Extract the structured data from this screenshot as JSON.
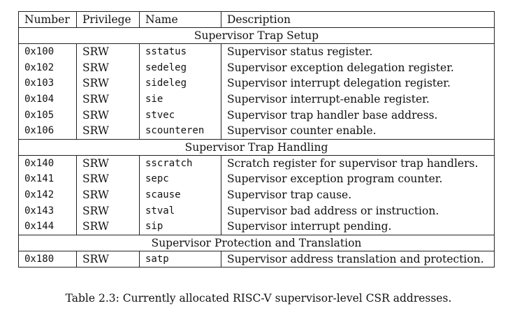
{
  "table": {
    "headers": [
      "Number",
      "Privilege",
      "Name",
      "Description"
    ],
    "sections": [
      {
        "title": "Supervisor Trap Setup",
        "rows": [
          {
            "number": "0x100",
            "privilege": "SRW",
            "name": "sstatus",
            "description": "Supervisor status register."
          },
          {
            "number": "0x102",
            "privilege": "SRW",
            "name": "sedeleg",
            "description": "Supervisor exception delegation register."
          },
          {
            "number": "0x103",
            "privilege": "SRW",
            "name": "sideleg",
            "description": "Supervisor interrupt delegation register."
          },
          {
            "number": "0x104",
            "privilege": "SRW",
            "name": "sie",
            "description": "Supervisor interrupt-enable register."
          },
          {
            "number": "0x105",
            "privilege": "SRW",
            "name": "stvec",
            "description": "Supervisor trap handler base address."
          },
          {
            "number": "0x106",
            "privilege": "SRW",
            "name": "scounteren",
            "description": "Supervisor counter enable."
          }
        ]
      },
      {
        "title": "Supervisor Trap Handling",
        "rows": [
          {
            "number": "0x140",
            "privilege": "SRW",
            "name": "sscratch",
            "description": "Scratch register for supervisor trap handlers."
          },
          {
            "number": "0x141",
            "privilege": "SRW",
            "name": "sepc",
            "description": "Supervisor exception program counter."
          },
          {
            "number": "0x142",
            "privilege": "SRW",
            "name": "scause",
            "description": "Supervisor trap cause."
          },
          {
            "number": "0x143",
            "privilege": "SRW",
            "name": "stval",
            "description": "Supervisor bad address or instruction."
          },
          {
            "number": "0x144",
            "privilege": "SRW",
            "name": "sip",
            "description": "Supervisor interrupt pending."
          }
        ]
      },
      {
        "title": "Supervisor Protection and Translation",
        "rows": [
          {
            "number": "0x180",
            "privilege": "SRW",
            "name": "satp",
            "description": "Supervisor address translation and protection."
          }
        ]
      }
    ]
  },
  "caption": "Table 2.3: Currently allocated RISC-V supervisor-level CSR addresses."
}
